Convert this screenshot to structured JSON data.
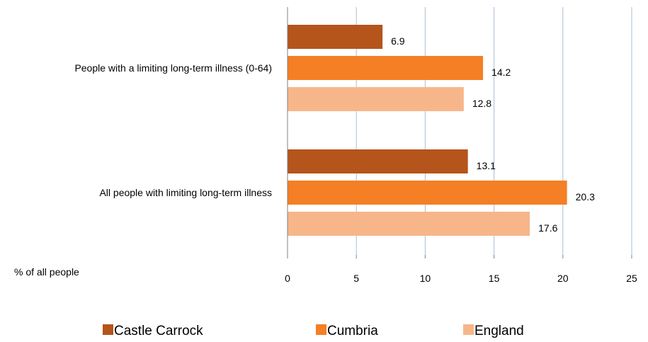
{
  "chart_data": {
    "type": "bar",
    "orientation": "horizontal",
    "categories": [
      "People with a limiting long-term illness (0-64)",
      "All people with limiting long-term illness"
    ],
    "series": [
      {
        "name": "Castle Carrock",
        "color": "#b5541b",
        "values": [
          6.9,
          13.1
        ]
      },
      {
        "name": "Cumbria",
        "color": "#f47f24",
        "values": [
          14.2,
          20.3
        ]
      },
      {
        "name": "England",
        "color": "#f7b68a",
        "values": [
          12.8,
          17.6
        ]
      }
    ],
    "value_labels": [
      [
        "6.9",
        "13.1"
      ],
      [
        "14.2",
        "20.3"
      ],
      [
        "12.8",
        "17.6"
      ]
    ],
    "xlabel": "% of all people",
    "xlim": [
      0,
      25
    ],
    "x_ticks": [
      "0",
      "5",
      "10",
      "15",
      "20",
      "25"
    ],
    "grid": true,
    "legend_position": "bottom"
  }
}
